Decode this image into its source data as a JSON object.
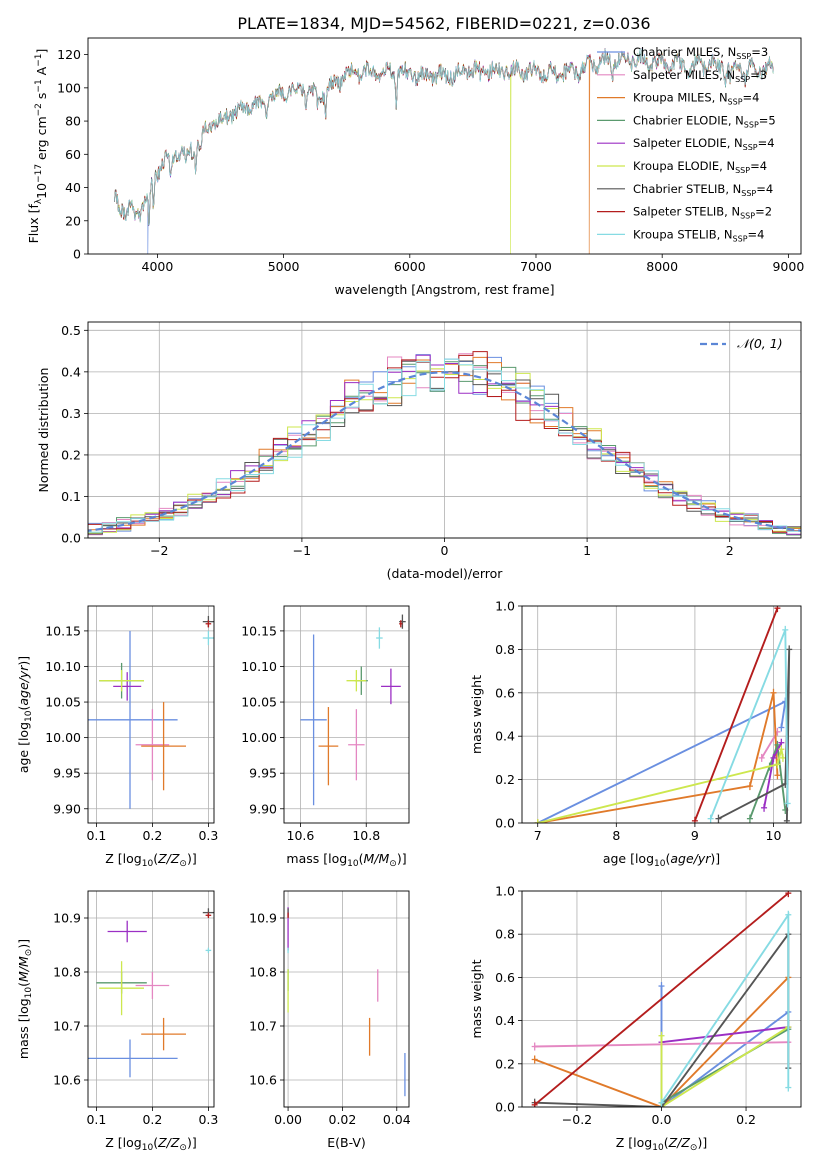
{
  "figure": {
    "title": "PLATE=1834, MJD=54562, FIBERID=0221, z=0.036"
  },
  "colors": {
    "Chabrier MILES": "#6a8fe0",
    "Salpeter MILES": "#e487c2",
    "Kroupa MILES": "#e07a2a",
    "Chabrier ELODIE": "#5a9a6e",
    "Salpeter ELODIE": "#9b2fc4",
    "Kroupa ELODIE": "#cde74e",
    "Chabrier STELIB": "#555555",
    "Salpeter STELIB": "#b41d1d",
    "Kroupa STELIB": "#86dbe3",
    "N(0,1)": "#5b86d6"
  },
  "chart_data": [
    {
      "id": "spectrum",
      "type": "line",
      "title": "PLATE=1834, MJD=54562, FIBERID=0221, z=0.036",
      "xlabel": "wavelength [Angstrom, rest frame]",
      "ylabel": "Flux [f_λ 10^-17 erg cm^-2 s^-1 A^-1]",
      "xlim": [
        3450,
        9100
      ],
      "ylim": [
        0,
        130
      ],
      "xticks": [
        4000,
        5000,
        6000,
        7000,
        8000,
        9000
      ],
      "yticks": [
        0,
        20,
        40,
        60,
        80,
        100,
        120
      ],
      "grid": false,
      "legend_position": "upper right",
      "continuum": [
        [
          3660,
          33
        ],
        [
          3750,
          26
        ],
        [
          3850,
          24
        ],
        [
          3910,
          32
        ],
        [
          3970,
          45
        ],
        [
          4030,
          54
        ],
        [
          4150,
          60
        ],
        [
          4300,
          64
        ],
        [
          4400,
          76
        ],
        [
          4600,
          85
        ],
        [
          4800,
          90
        ],
        [
          5000,
          97
        ],
        [
          5150,
          100
        ],
        [
          5300,
          95
        ],
        [
          5500,
          108
        ],
        [
          5700,
          110
        ],
        [
          5900,
          109
        ],
        [
          6100,
          107
        ],
        [
          6300,
          107
        ],
        [
          6500,
          111
        ],
        [
          6700,
          110
        ],
        [
          6900,
          110
        ],
        [
          7100,
          109
        ],
        [
          7300,
          109
        ],
        [
          7500,
          116
        ],
        [
          7800,
          117
        ],
        [
          8000,
          115
        ],
        [
          8200,
          113
        ],
        [
          8400,
          114
        ],
        [
          8600,
          112
        ],
        [
          8800,
          111
        ],
        [
          8880,
          112
        ]
      ],
      "absorption_lines": [
        [
          3934,
          22
        ],
        [
          3969,
          18
        ],
        [
          4102,
          10
        ],
        [
          4227,
          8
        ],
        [
          4304,
          14
        ],
        [
          4341,
          10
        ],
        [
          4861,
          8
        ],
        [
          5175,
          14
        ],
        [
          5270,
          8
        ],
        [
          5335,
          10
        ],
        [
          5893,
          18
        ],
        [
          6563,
          6
        ],
        [
          7605,
          10
        ],
        [
          8498,
          8
        ],
        [
          8542,
          9
        ],
        [
          8662,
          8
        ]
      ],
      "dropouts": [
        {
          "series": "Chabrier MILES",
          "wavelength": 3925
        },
        {
          "series": "Kroupa ELODIE",
          "wavelength": 6800
        },
        {
          "series": "Kroupa MILES",
          "wavelength": 7420
        }
      ],
      "series": [
        {
          "name": "Chabrier MILES",
          "legend": [
            "Chabrier MILES, N",
            "SSP",
            "=3"
          ]
        },
        {
          "name": "Salpeter MILES",
          "legend": [
            "Salpeter MILES, N",
            "SSP",
            "=3"
          ]
        },
        {
          "name": "Kroupa MILES",
          "legend": [
            "Kroupa MILES, N",
            "SSP",
            "=4"
          ]
        },
        {
          "name": "Chabrier ELODIE",
          "legend": [
            "Chabrier ELODIE, N",
            "SSP",
            "=5"
          ]
        },
        {
          "name": "Salpeter ELODIE",
          "legend": [
            "Salpeter ELODIE, N",
            "SSP",
            "=4"
          ]
        },
        {
          "name": "Kroupa ELODIE",
          "legend": [
            "Kroupa ELODIE, N",
            "SSP",
            "=4"
          ]
        },
        {
          "name": "Chabrier STELIB",
          "legend": [
            "Chabrier STELIB, N",
            "SSP",
            "=4"
          ]
        },
        {
          "name": "Salpeter STELIB",
          "legend": [
            "Salpeter STELIB, N",
            "SSP",
            "=2"
          ]
        },
        {
          "name": "Kroupa STELIB",
          "legend": [
            "Kroupa STELIB, N",
            "SSP",
            "=4"
          ]
        }
      ]
    },
    {
      "id": "residuals",
      "type": "histogram",
      "xlabel": "(data-model)/error",
      "ylabel": "Normed distribution",
      "xlim": [
        -2.5,
        2.5
      ],
      "ylim": [
        0,
        0.52
      ],
      "xticks": [
        -2,
        -1,
        0,
        1,
        2
      ],
      "yticks": [
        0.0,
        0.1,
        0.2,
        0.3,
        0.4,
        0.5
      ],
      "grid": true,
      "bin_width": 0.1,
      "legend_position": "upper right",
      "legend": [
        {
          "name": "N(0,1)",
          "label": "𝒩(0, 1)",
          "style": "dashed"
        }
      ],
      "series": [
        {
          "name": "Chabrier MILES",
          "jitter": 1.2
        },
        {
          "name": "Salpeter MILES",
          "jitter": 2.3
        },
        {
          "name": "Kroupa MILES",
          "jitter": 3.1
        },
        {
          "name": "Chabrier ELODIE",
          "jitter": 4.7
        },
        {
          "name": "Salpeter ELODIE",
          "jitter": 5.9
        },
        {
          "name": "Kroupa ELODIE",
          "jitter": 6.4
        },
        {
          "name": "Chabrier STELIB",
          "jitter": 7.8
        },
        {
          "name": "Salpeter STELIB",
          "jitter": 8.5
        },
        {
          "name": "Kroupa STELIB",
          "jitter": 9.6
        }
      ]
    },
    {
      "id": "age-vs-Z",
      "type": "errorbar",
      "xlabel": "Z [log10(Z/Z⊙)]",
      "ylabel": "age  [log10(age/yr)]",
      "xlim": [
        0.085,
        0.31
      ],
      "ylim": [
        9.88,
        10.185
      ],
      "xticks": [
        0.1,
        0.2,
        0.3
      ],
      "yticks": [
        9.9,
        9.95,
        10.0,
        10.05,
        10.1,
        10.15
      ],
      "grid": true,
      "points": [
        {
          "series": "Chabrier MILES",
          "x": 0.16,
          "y": 10.025,
          "xerr": 0.085,
          "yerr": 0.125
        },
        {
          "series": "Salpeter MILES",
          "x": 0.2,
          "y": 9.99,
          "xerr": 0.03,
          "yerr": 0.05
        },
        {
          "series": "Kroupa MILES",
          "x": 0.22,
          "y": 9.988,
          "xerr": 0.04,
          "yerr": 0.062
        },
        {
          "series": "Chabrier ELODIE",
          "x": 0.145,
          "y": 10.08,
          "xerr": 0.04,
          "yerr": 0.025
        },
        {
          "series": "Salpeter ELODIE",
          "x": 0.155,
          "y": 10.072,
          "xerr": 0.025,
          "yerr": 0.02
        },
        {
          "series": "Kroupa ELODIE",
          "x": 0.145,
          "y": 10.08,
          "xerr": 0.04,
          "yerr": 0.015
        },
        {
          "series": "Chabrier STELIB",
          "x": 0.3,
          "y": 10.163,
          "xerr": 0.01,
          "yerr": 0.008
        },
        {
          "series": "Salpeter STELIB",
          "x": 0.3,
          "y": 10.16,
          "xerr": 0.005,
          "yerr": 0.005
        },
        {
          "series": "Kroupa STELIB",
          "x": 0.3,
          "y": 10.14,
          "xerr": 0.01,
          "yerr": 0.01
        }
      ]
    },
    {
      "id": "age-vs-mass",
      "type": "errorbar",
      "xlabel": "mass [log10(M/M⊙)]",
      "ylabel": "",
      "xlim": [
        10.55,
        10.93
      ],
      "ylim": [
        9.88,
        10.185
      ],
      "xticks": [
        10.6,
        10.8
      ],
      "yticks": [
        9.9,
        9.95,
        10.0,
        10.05,
        10.1,
        10.15
      ],
      "grid": true,
      "points": [
        {
          "series": "Chabrier MILES",
          "x": 10.64,
          "y": 10.025,
          "xerr": 0.04,
          "yerr": 0.12
        },
        {
          "series": "Salpeter MILES",
          "x": 10.77,
          "y": 9.99,
          "xerr": 0.025,
          "yerr": 0.05
        },
        {
          "series": "Kroupa MILES",
          "x": 10.685,
          "y": 9.988,
          "xerr": 0.03,
          "yerr": 0.055
        },
        {
          "series": "Chabrier ELODIE",
          "x": 10.785,
          "y": 10.08,
          "xerr": 0.02,
          "yerr": 0.02
        },
        {
          "series": "Salpeter ELODIE",
          "x": 10.875,
          "y": 10.072,
          "xerr": 0.03,
          "yerr": 0.025
        },
        {
          "series": "Kroupa ELODIE",
          "x": 10.77,
          "y": 10.08,
          "xerr": 0.03,
          "yerr": 0.015
        },
        {
          "series": "Chabrier STELIB",
          "x": 10.91,
          "y": 10.163,
          "xerr": 0.01,
          "yerr": 0.01
        },
        {
          "series": "Salpeter STELIB",
          "x": 10.905,
          "y": 10.16,
          "xerr": 0.005,
          "yerr": 0.005
        },
        {
          "series": "Kroupa STELIB",
          "x": 10.84,
          "y": 10.14,
          "xerr": 0.01,
          "yerr": 0.015
        }
      ]
    },
    {
      "id": "massweight-vs-age",
      "type": "line",
      "xlabel": "age  [log10(age/yr)]",
      "ylabel": "mass weight",
      "xlim": [
        6.8,
        10.35
      ],
      "ylim": [
        0,
        1
      ],
      "xticks": [
        7,
        8,
        9,
        10
      ],
      "yticks": [
        0.0,
        0.2,
        0.4,
        0.6,
        0.8,
        1.0
      ],
      "grid": true,
      "series": [
        {
          "name": "Chabrier MILES",
          "points": [
            [
              7.0,
              0.0
            ],
            [
              10.15,
              0.56
            ],
            [
              10.1,
              0.44
            ]
          ]
        },
        {
          "name": "Salpeter MILES",
          "points": [
            [
              9.85,
              0.3
            ],
            [
              10.05,
              0.42
            ]
          ]
        },
        {
          "name": "Kroupa MILES",
          "points": [
            [
              7.0,
              0.0
            ],
            [
              9.7,
              0.17
            ],
            [
              10.0,
              0.6
            ],
            [
              10.05,
              0.22
            ]
          ]
        },
        {
          "name": "Chabrier ELODIE",
          "points": [
            [
              9.7,
              0.02
            ],
            [
              9.95,
              0.26
            ],
            [
              10.05,
              0.36
            ],
            [
              10.15,
              0.06
            ]
          ]
        },
        {
          "name": "Salpeter ELODIE",
          "points": [
            [
              9.88,
              0.07
            ],
            [
              10.0,
              0.3
            ],
            [
              10.1,
              0.37
            ]
          ]
        },
        {
          "name": "Kroupa ELODIE",
          "points": [
            [
              7.0,
              0.0
            ],
            [
              10.05,
              0.27
            ],
            [
              10.1,
              0.34
            ],
            [
              10.12,
              0.3
            ]
          ]
        },
        {
          "name": "Chabrier STELIB",
          "points": [
            [
              9.3,
              0.02
            ],
            [
              10.15,
              0.18
            ],
            [
              10.2,
              0.8
            ],
            [
              10.17,
              0.01
            ]
          ]
        },
        {
          "name": "Salpeter STELIB",
          "points": [
            [
              9.0,
              0.01
            ],
            [
              10.05,
              0.99
            ]
          ]
        },
        {
          "name": "Kroupa STELIB",
          "points": [
            [
              9.2,
              0.02
            ],
            [
              10.15,
              0.89
            ],
            [
              10.18,
              0.09
            ]
          ]
        }
      ]
    },
    {
      "id": "mass-vs-Z",
      "type": "errorbar",
      "xlabel": "Z [log10(Z/Z⊙)]",
      "ylabel": "mass [log10(M/M⊙)]",
      "xlim": [
        0.085,
        0.31
      ],
      "ylim": [
        10.55,
        10.95
      ],
      "xticks": [
        0.1,
        0.2,
        0.3
      ],
      "yticks": [
        10.6,
        10.7,
        10.8,
        10.9
      ],
      "grid": true,
      "points": [
        {
          "series": "Chabrier MILES",
          "x": 0.16,
          "y": 10.64,
          "xerr": 0.085,
          "yerr": 0.035
        },
        {
          "series": "Salpeter MILES",
          "x": 0.2,
          "y": 10.775,
          "xerr": 0.03,
          "yerr": 0.025
        },
        {
          "series": "Kroupa MILES",
          "x": 0.22,
          "y": 10.685,
          "xerr": 0.04,
          "yerr": 0.03
        },
        {
          "series": "Chabrier ELODIE",
          "x": 0.145,
          "y": 10.78,
          "xerr": 0.045,
          "yerr": 0.02
        },
        {
          "series": "Salpeter ELODIE",
          "x": 0.155,
          "y": 10.875,
          "xerr": 0.035,
          "yerr": 0.02
        },
        {
          "series": "Kroupa ELODIE",
          "x": 0.145,
          "y": 10.77,
          "xerr": 0.04,
          "yerr": 0.05
        },
        {
          "series": "Chabrier STELIB",
          "x": 0.3,
          "y": 10.91,
          "xerr": 0.01,
          "yerr": 0.008
        },
        {
          "series": "Salpeter STELIB",
          "x": 0.3,
          "y": 10.905,
          "xerr": 0.005,
          "yerr": 0.005
        },
        {
          "series": "Kroupa STELIB",
          "x": 0.3,
          "y": 10.84,
          "xerr": 0.005,
          "yerr": 0.005
        }
      ]
    },
    {
      "id": "mass-vs-EBV",
      "type": "errorbar",
      "xlabel": "E(B-V)",
      "ylabel": "",
      "xlim": [
        -0.0015,
        0.0445
      ],
      "ylim": [
        10.55,
        10.95
      ],
      "xticks": [
        0.0,
        0.02,
        0.04
      ],
      "yticks": [
        10.6,
        10.7,
        10.8,
        10.9
      ],
      "grid": true,
      "points": [
        {
          "series": "Chabrier MILES",
          "x": 0.043,
          "y": 10.61,
          "xerr": 0,
          "yerr": 0.04
        },
        {
          "series": "Salpeter MILES",
          "x": 0.033,
          "y": 10.775,
          "xerr": 0,
          "yerr": 0.03
        },
        {
          "series": "Kroupa MILES",
          "x": 0.03,
          "y": 10.68,
          "xerr": 0,
          "yerr": 0.035
        },
        {
          "series": "Chabrier ELODIE",
          "x": 0.0,
          "y": 10.785,
          "xerr": 0,
          "yerr": 0.02
        },
        {
          "series": "Salpeter ELODIE",
          "x": 0.0,
          "y": 10.88,
          "xerr": 0,
          "yerr": 0.04
        },
        {
          "series": "Kroupa ELODIE",
          "x": 0.0,
          "y": 10.765,
          "xerr": 0,
          "yerr": 0.04
        },
        {
          "series": "Chabrier STELIB",
          "x": 0.0,
          "y": 10.91,
          "xerr": 0,
          "yerr": 0.008
        },
        {
          "series": "Salpeter STELIB",
          "x": 0.0,
          "y": 10.905,
          "xerr": 0,
          "yerr": 0.005
        },
        {
          "series": "Kroupa STELIB",
          "x": 0.0,
          "y": 10.84,
          "xerr": 0,
          "yerr": 0.005
        }
      ]
    },
    {
      "id": "massweight-vs-Z",
      "type": "line",
      "xlabel": "Z [log10(Z/Z⊙)]",
      "ylabel": "mass weight",
      "xlim": [
        -0.33,
        0.33
      ],
      "ylim": [
        0,
        1
      ],
      "xticks": [
        -0.2,
        0.0,
        0.2
      ],
      "yticks": [
        0.0,
        0.2,
        0.4,
        0.6,
        0.8,
        1.0
      ],
      "grid": true,
      "series": [
        {
          "name": "Chabrier MILES",
          "points": [
            [
              0.0,
              0.56
            ],
            [
              0.0,
              0.0
            ],
            [
              0.3,
              0.44
            ]
          ]
        },
        {
          "name": "Salpeter MILES",
          "points": [
            [
              -0.3,
              0.28
            ],
            [
              0.3,
              0.3
            ]
          ]
        },
        {
          "name": "Kroupa MILES",
          "points": [
            [
              -0.3,
              0.22
            ],
            [
              0.0,
              0.0
            ],
            [
              0.3,
              0.6
            ]
          ]
        },
        {
          "name": "Chabrier ELODIE",
          "points": [
            [
              0.0,
              0.02
            ],
            [
              0.3,
              0.36
            ]
          ]
        },
        {
          "name": "Salpeter ELODIE",
          "points": [
            [
              0.0,
              0.3
            ],
            [
              0.3,
              0.37
            ]
          ]
        },
        {
          "name": "Kroupa ELODIE",
          "points": [
            [
              0.0,
              0.33
            ],
            [
              0.0,
              0.0
            ],
            [
              0.3,
              0.37
            ]
          ]
        },
        {
          "name": "Chabrier STELIB",
          "points": [
            [
              -0.3,
              0.02
            ],
            [
              0.0,
              0.0
            ],
            [
              0.3,
              0.8
            ],
            [
              0.3,
              0.18
            ]
          ]
        },
        {
          "name": "Salpeter STELIB",
          "points": [
            [
              -0.3,
              0.01
            ],
            [
              0.3,
              0.99
            ]
          ]
        },
        {
          "name": "Kroupa STELIB",
          "points": [
            [
              0.0,
              0.02
            ],
            [
              0.3,
              0.89
            ],
            [
              0.3,
              0.09
            ]
          ]
        }
      ]
    }
  ]
}
